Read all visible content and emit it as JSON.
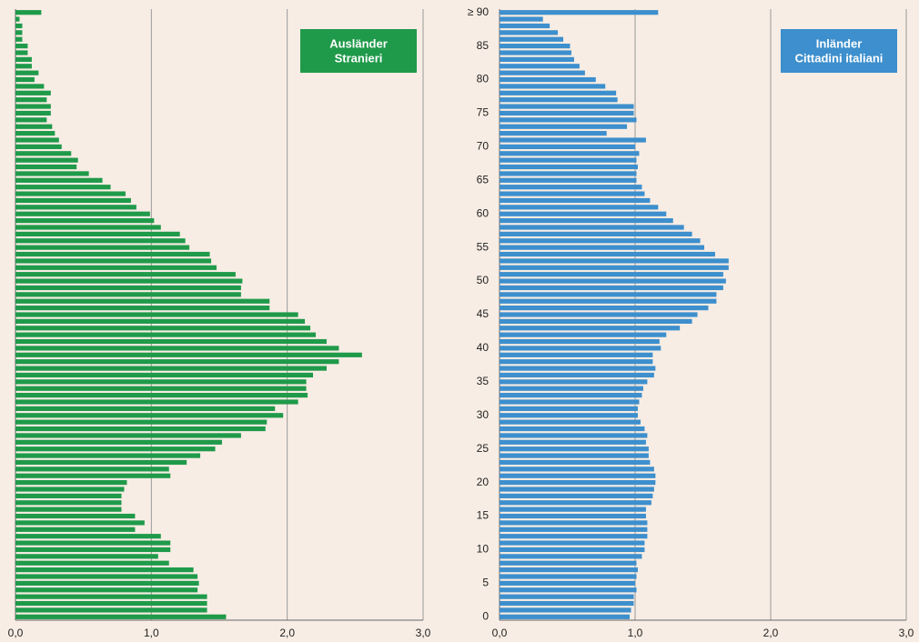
{
  "chart_data": [
    {
      "type": "bar",
      "orientation": "horizontal",
      "legend_lines": [
        "Ausländer",
        "Stranieri"
      ],
      "color": "#1f9a4a",
      "values": [
        1.55,
        1.41,
        1.41,
        1.41,
        1.34,
        1.35,
        1.34,
        1.31,
        1.13,
        1.05,
        1.14,
        1.14,
        1.07,
        0.88,
        0.95,
        0.88,
        0.78,
        0.78,
        0.78,
        0.8,
        0.82,
        1.14,
        1.13,
        1.26,
        1.36,
        1.47,
        1.52,
        1.66,
        1.84,
        1.85,
        1.97,
        1.91,
        2.08,
        2.15,
        2.14,
        2.14,
        2.19,
        2.29,
        2.38,
        2.55,
        2.38,
        2.29,
        2.21,
        2.17,
        2.13,
        2.08,
        1.87,
        1.87,
        1.66,
        1.66,
        1.67,
        1.62,
        1.48,
        1.44,
        1.43,
        1.28,
        1.25,
        1.21,
        1.07,
        1.02,
        0.99,
        0.89,
        0.85,
        0.81,
        0.7,
        0.64,
        0.54,
        0.45,
        0.46,
        0.41,
        0.34,
        0.32,
        0.29,
        0.27,
        0.23,
        0.26,
        0.26,
        0.23,
        0.26,
        0.21,
        0.14,
        0.17,
        0.12,
        0.12,
        0.09,
        0.09,
        0.05,
        0.05,
        0.05,
        0.03,
        0.19
      ],
      "xlim": [
        0,
        3
      ],
      "xticks": [
        {
          "value": 0,
          "label": "0,0"
        },
        {
          "value": 1,
          "label": "1,0"
        },
        {
          "value": 2,
          "label": "2,0"
        },
        {
          "value": 3,
          "label": "3,0"
        }
      ],
      "grid": true
    },
    {
      "type": "bar",
      "orientation": "horizontal",
      "legend_lines": [
        "Inländer",
        "Cittadini italiani"
      ],
      "color": "#3d8fcd",
      "categories": [
        "0",
        null,
        null,
        null,
        null,
        "5",
        null,
        null,
        null,
        null,
        "10",
        null,
        null,
        null,
        null,
        "15",
        null,
        null,
        null,
        null,
        "20",
        null,
        null,
        null,
        null,
        "25",
        null,
        null,
        null,
        null,
        "30",
        null,
        null,
        null,
        null,
        "35",
        null,
        null,
        null,
        null,
        "40",
        null,
        null,
        null,
        null,
        "45",
        null,
        null,
        null,
        null,
        "50",
        null,
        null,
        null,
        null,
        "55",
        null,
        null,
        null,
        null,
        "60",
        null,
        null,
        null,
        null,
        "65",
        null,
        null,
        null,
        null,
        "70",
        null,
        null,
        null,
        null,
        "75",
        null,
        null,
        null,
        null,
        "80",
        null,
        null,
        null,
        null,
        "85",
        null,
        null,
        null,
        null,
        "≥ 90"
      ],
      "values": [
        0.96,
        0.97,
        0.99,
        0.99,
        1.01,
        1.0,
        1.01,
        1.02,
        1.01,
        1.05,
        1.07,
        1.07,
        1.09,
        1.09,
        1.09,
        1.08,
        1.08,
        1.12,
        1.13,
        1.14,
        1.15,
        1.15,
        1.14,
        1.11,
        1.1,
        1.1,
        1.08,
        1.09,
        1.07,
        1.04,
        1.02,
        1.02,
        1.03,
        1.05,
        1.06,
        1.09,
        1.14,
        1.15,
        1.13,
        1.13,
        1.19,
        1.18,
        1.23,
        1.33,
        1.42,
        1.46,
        1.54,
        1.6,
        1.6,
        1.65,
        1.67,
        1.65,
        1.69,
        1.69,
        1.59,
        1.51,
        1.48,
        1.42,
        1.36,
        1.28,
        1.23,
        1.17,
        1.11,
        1.07,
        1.05,
        1.01,
        1.01,
        1.02,
        1.01,
        1.03,
        1.0,
        1.08,
        0.79,
        0.94,
        1.01,
        0.99,
        0.99,
        0.87,
        0.86,
        0.78,
        0.71,
        0.63,
        0.59,
        0.55,
        0.53,
        0.52,
        0.47,
        0.43,
        0.37,
        0.32,
        1.17
      ],
      "xlim": [
        0,
        3
      ],
      "xticks": [
        {
          "value": 0,
          "label": "0,0"
        },
        {
          "value": 1,
          "label": "1,0"
        },
        {
          "value": 2,
          "label": "2,0"
        },
        {
          "value": 3,
          "label": "3,0"
        }
      ],
      "grid": true
    }
  ]
}
